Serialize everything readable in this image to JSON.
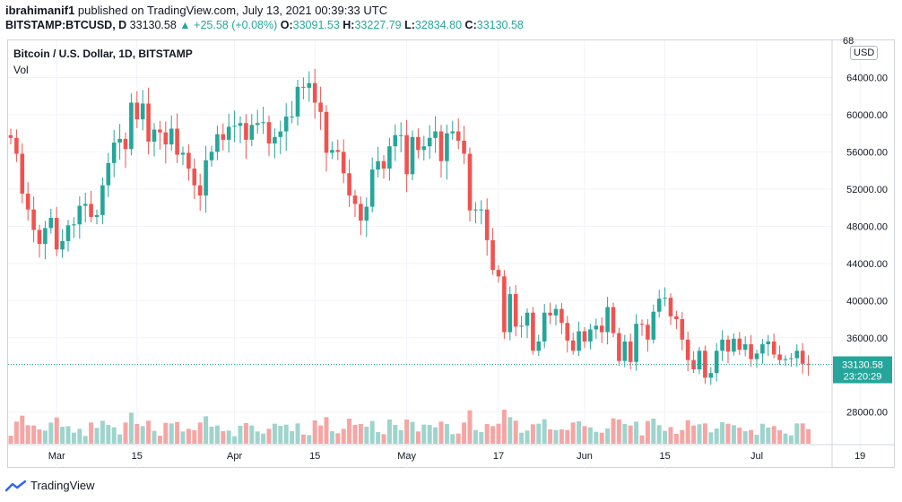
{
  "header": {
    "author": "ibrahimanif1",
    "published": "published on TradingView.com, July 13, 2021 00:39:33 UTC",
    "symbol": "BITSTAMP:BTCUSD, D",
    "price": "33130.58",
    "change": "+25.58 (+0.08%)",
    "o_label": "O:",
    "o_value": "33091.53",
    "h_label": "H:",
    "h_value": "33227.79",
    "l_label": "L:",
    "l_value": "32834.80",
    "c_label": "C:",
    "c_value": "33130.58"
  },
  "legend": {
    "title": "Bitcoin / U.S. Dollar, 1D, BITSTAMP",
    "vol": "Vol"
  },
  "currency_button": "USD",
  "price_label": {
    "price": "33130.58",
    "countdown": "23:20:29"
  },
  "footer": {
    "brand": "TradingView"
  },
  "colors": {
    "up": "#26a69a",
    "down": "#ef5350",
    "up_vol": "#9fd4cd",
    "down_vol": "#f5a6a4",
    "grid": "#f0f3fa"
  },
  "chart_data": {
    "type": "candlestick",
    "title": "Bitcoin / U.S. Dollar, 1D, BITSTAMP",
    "ylim": [
      24500,
      68000
    ],
    "y_ticks": [
      "64000.00",
      "60000.00",
      "56000.00",
      "52000.00",
      "48000.00",
      "44000.00",
      "40000.00",
      "36000.00",
      "28000.00"
    ],
    "top_tick_partial": "68",
    "x_ticks": [
      {
        "label": "Mar",
        "index": 8
      },
      {
        "label": "15",
        "index": 22
      },
      {
        "label": "Apr",
        "index": 39
      },
      {
        "label": "15",
        "index": 53
      },
      {
        "label": "May",
        "index": 69
      },
      {
        "label": "17",
        "index": 85
      },
      {
        "label": "Jun",
        "index": 100
      },
      {
        "label": "15",
        "index": 114
      },
      {
        "label": "Jul",
        "index": 130
      },
      {
        "label": "19",
        "index": 148
      }
    ],
    "close_series": [
      57500,
      55800,
      51500,
      49800,
      47600,
      46100,
      47800,
      48900,
      45500,
      46400,
      48100,
      48200,
      50200,
      50400,
      49000,
      49200,
      52400,
      54800,
      57000,
      57400,
      56300,
      61300,
      59500,
      61200,
      57100,
      58400,
      58100,
      56800,
      58500,
      55700,
      55900,
      54200,
      52400,
      51300,
      55100,
      56000,
      57900,
      57300,
      58700,
      58800,
      59100,
      57300,
      58900,
      59100,
      59200,
      56900,
      57600,
      58200,
      59800,
      59800,
      63000,
      62900,
      63400,
      61300,
      60300,
      55900,
      56200,
      56000,
      53700,
      51300,
      50400,
      48600,
      50100,
      54100,
      55000,
      54200,
      56600,
      57800,
      57800,
      53600,
      57600,
      56200,
      56600,
      57500,
      58200,
      55000,
      58000,
      58200,
      57200,
      55800,
      49700,
      49800,
      49800,
      46500,
      43300,
      42600,
      36600,
      40700,
      37200,
      37300,
      38700,
      34600,
      35600,
      38700,
      38400,
      39100,
      37600,
      35700,
      34600,
      36700,
      35600,
      36900,
      37300,
      36600,
      39300,
      36500,
      33500,
      35600,
      33400,
      37500,
      37400,
      35800,
      38800,
      40200,
      40300,
      38300,
      38000,
      35800,
      33600,
      32600,
      34600,
      31700,
      32200,
      34600,
      35800,
      34500,
      35900,
      34700,
      35300,
      33700,
      34300,
      35300,
      35600,
      34200,
      33600,
      33700,
      33800,
      34600,
      33200,
      33100
    ],
    "start_open": 57800,
    "volume_note": "Volume bars shown beneath candles (relative scale)"
  }
}
